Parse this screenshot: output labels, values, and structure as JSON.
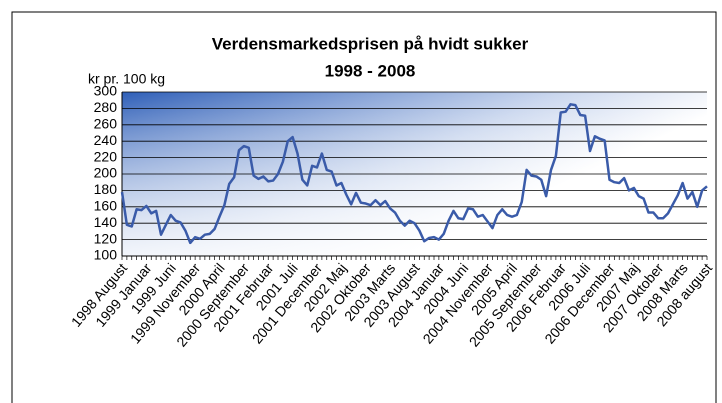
{
  "chart_data": {
    "type": "line",
    "title": "Verdensmarkedsprisen på hvidt sukker",
    "subtitle": "1998 - 2008",
    "y_label": "kr pr. 100 kg",
    "categories": [
      "1998 August",
      null,
      null,
      null,
      null,
      "1999 Januar",
      null,
      null,
      null,
      null,
      "1999 Juni",
      null,
      null,
      null,
      null,
      "1999 November",
      null,
      null,
      null,
      null,
      "2000 April",
      null,
      null,
      null,
      null,
      "2000 September",
      null,
      null,
      null,
      null,
      "2001 Februar",
      null,
      null,
      null,
      null,
      "2001 Juli",
      null,
      null,
      null,
      null,
      "2001 December",
      null,
      null,
      null,
      null,
      "2002 Maj",
      null,
      null,
      null,
      null,
      "2002 Oktober",
      null,
      null,
      null,
      null,
      "2003 Marts",
      null,
      null,
      null,
      null,
      "2003 August",
      null,
      null,
      null,
      null,
      "2004 Januar",
      null,
      null,
      null,
      null,
      "2004 Juni",
      null,
      null,
      null,
      null,
      "2004 November",
      null,
      null,
      null,
      null,
      "2005 April",
      null,
      null,
      null,
      null,
      "2005 September",
      null,
      null,
      null,
      null,
      "2006 Februar",
      null,
      null,
      null,
      null,
      "2006 Juli",
      null,
      null,
      null,
      null,
      "2006 December",
      null,
      null,
      null,
      null,
      "2007 Maj",
      null,
      null,
      null,
      null,
      "2007 Oktober",
      null,
      null,
      null,
      null,
      "2008 Marts",
      null,
      null,
      null,
      null,
      "2008 august"
    ],
    "values": [
      178,
      138,
      136,
      157,
      156,
      161,
      152,
      155,
      126,
      138,
      150,
      143,
      141,
      131,
      116,
      123,
      121,
      126,
      127,
      133,
      148,
      162,
      188,
      196,
      229,
      234,
      232,
      198,
      194,
      197,
      191,
      192,
      200,
      215,
      240,
      245,
      225,
      193,
      186,
      210,
      208,
      225,
      205,
      203,
      186,
      189,
      175,
      163,
      177,
      165,
      164,
      162,
      168,
      162,
      167,
      158,
      153,
      143,
      137,
      143,
      140,
      131,
      118,
      122,
      123,
      120,
      127,
      143,
      155,
      146,
      145,
      158,
      157,
      148,
      150,
      142,
      134,
      150,
      157,
      150,
      148,
      150,
      166,
      205,
      198,
      197,
      193,
      173,
      205,
      222,
      275,
      276,
      285,
      284,
      272,
      271,
      228,
      246,
      243,
      241,
      193,
      190,
      189,
      195,
      180,
      183,
      173,
      170,
      153,
      153,
      146,
      146,
      152,
      163,
      174,
      189,
      170,
      178,
      160,
      180,
      185
    ],
    "color": "#3a5ba9",
    "ylim": [
      100,
      300
    ],
    "yticks": [
      100,
      120,
      140,
      160,
      180,
      200,
      220,
      240,
      260,
      280,
      300
    ],
    "grid": true
  }
}
